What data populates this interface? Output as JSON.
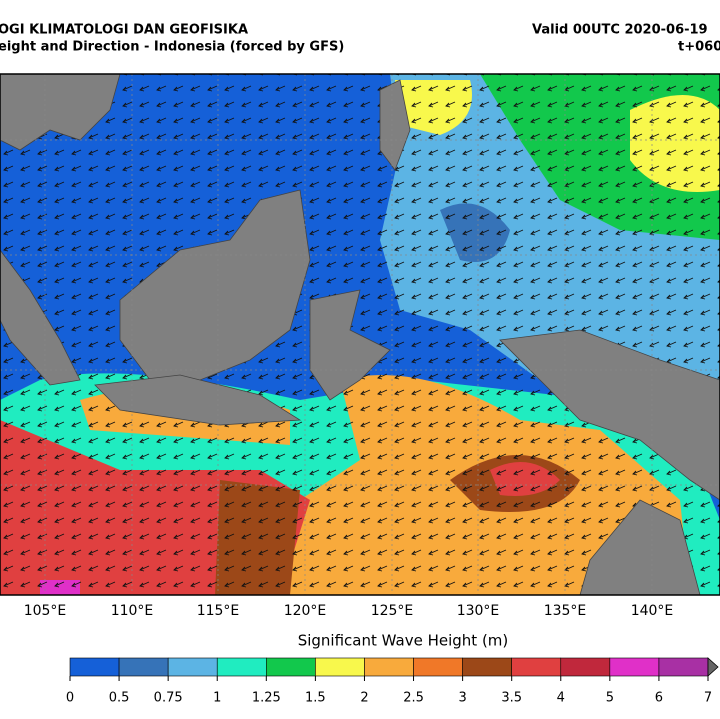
{
  "header": {
    "title_left_1": "OGI KLIMATOLOGI DAN GEOFISIKA",
    "title_left_2": "eight and Direction - Indonesia (forced by GFS)",
    "title_right_1": "Valid 00UTC 2020-06-19",
    "title_right_2": "t+060"
  },
  "map": {
    "lon_labels": [
      "105°E",
      "110°E",
      "115°E",
      "120°E",
      "125°E",
      "130°E",
      "135°E",
      "140°E"
    ]
  },
  "colorbar": {
    "label": "Significant Wave Height (m)",
    "levels": [
      0,
      0.5,
      0.75,
      1,
      1.25,
      1.5,
      2,
      2.5,
      3,
      3.5,
      4,
      5,
      6,
      7
    ],
    "colors": [
      "#1560d8",
      "#3673b8",
      "#5cb4e4",
      "#20ecc0",
      "#12c84c",
      "#f8f84c",
      "#f8aa3c",
      "#f07828",
      "#9c4818",
      "#e04040",
      "#c0283c",
      "#e030c8",
      "#a830a4"
    ]
  }
}
